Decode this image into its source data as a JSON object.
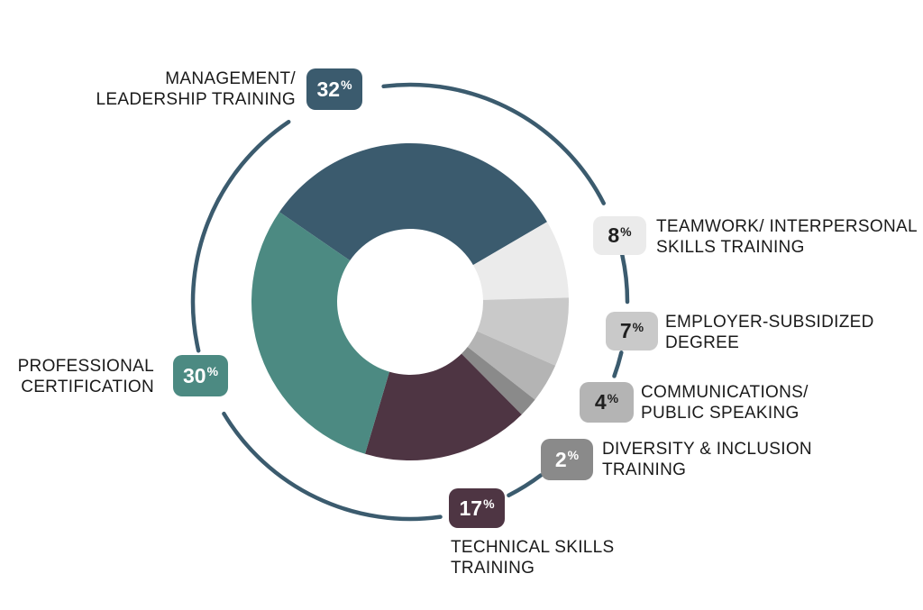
{
  "page": {
    "background": "#ffffff"
  },
  "chart_data": {
    "type": "pie",
    "variant": "donut",
    "title": "",
    "unit": "%",
    "legend_position": "callouts-around-ring",
    "ring_color": "#3b5b6e",
    "text_color": "#1a1a1a",
    "start_angle_deg": 145.5,
    "clockwise": true,
    "segments": [
      {
        "label": "MANAGEMENT/ LEADERSHIP TRAINING",
        "label_lines": [
          "MANAGEMENT/",
          "LEADERSHIP TRAINING"
        ],
        "value": 32,
        "badge_text": "32%",
        "color": "#3b5b6e",
        "badge_text_color": "#ffffff"
      },
      {
        "label": "TEAMWORK/ INTERPERSONAL SKILLS TRAINING",
        "label_lines": [
          "TEAMWORK/ INTERPERSONAL",
          "SKILLS TRAINING"
        ],
        "value": 8,
        "badge_text": "8%",
        "color": "#ebebeb",
        "badge_text_color": "#1f1f1f"
      },
      {
        "label": "EMPLOYER-SUBSIDIZED DEGREE",
        "label_lines": [
          "EMPLOYER-SUBSIDIZED",
          "DEGREE"
        ],
        "value": 7,
        "badge_text": "7%",
        "color": "#c9c9c9",
        "badge_text_color": "#1f1f1f"
      },
      {
        "label": "COMMUNICATIONS/ PUBLIC SPEAKING",
        "label_lines": [
          "COMMUNICATIONS/",
          "PUBLIC SPEAKING"
        ],
        "value": 4,
        "badge_text": "4%",
        "color": "#b4b4b4",
        "badge_text_color": "#1f1f1f"
      },
      {
        "label": "DIVERSITY & INCLUSION TRAINING",
        "label_lines": [
          "DIVERSITY & INCLUSION",
          "TRAINING"
        ],
        "value": 2,
        "badge_text": "2%",
        "color": "#8a8a8a",
        "badge_text_color": "#ffffff"
      },
      {
        "label": "TECHNICAL SKILLS TRAINING",
        "label_lines": [
          "TECHNICAL SKILLS",
          "TRAINING"
        ],
        "value": 17,
        "badge_text": "17%",
        "color": "#4e3543",
        "badge_text_color": "#ffffff"
      },
      {
        "label": "PROFESSIONAL CERTIFICATION",
        "label_lines": [
          "PROFESSIONAL",
          "CERTIFICATION"
        ],
        "value": 30,
        "badge_text": "30%",
        "color": "#4c8a82",
        "badge_text_color": "#ffffff"
      }
    ]
  }
}
